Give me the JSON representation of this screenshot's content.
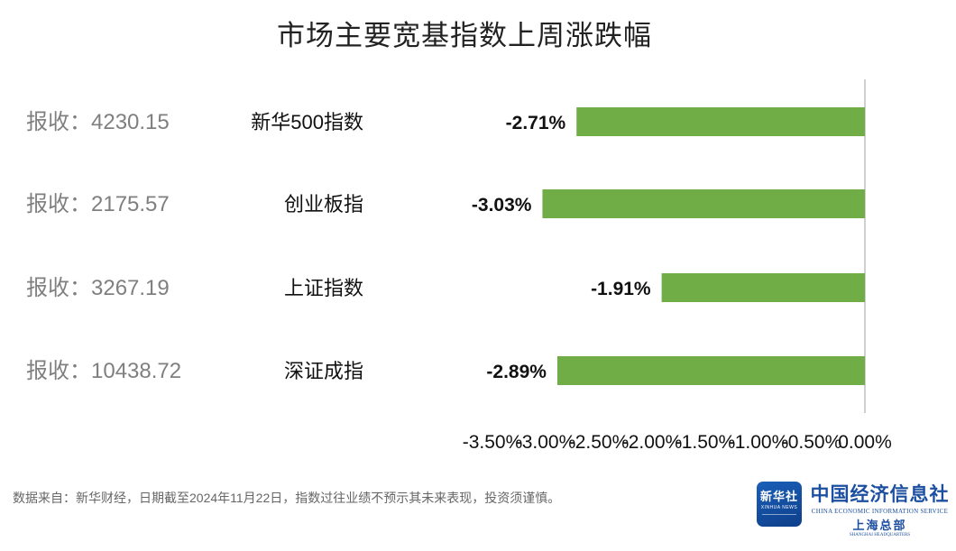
{
  "title": "市场主要宽基指数上周涨跌幅",
  "chart_data": {
    "type": "bar",
    "orientation": "horizontal",
    "categories": [
      "新华500指数",
      "创业板指",
      "上证指数",
      "深证成指"
    ],
    "values": [
      -2.71,
      -3.03,
      -1.91,
      -2.89
    ],
    "value_labels": [
      "-2.71%",
      "-3.03%",
      "-1.91%",
      "-2.89%"
    ],
    "close_labels": [
      "报收：4230.15",
      "报收：2175.57",
      "报收：3267.19",
      "报收：10438.72"
    ],
    "xlim": [
      -3.5,
      0
    ],
    "x_ticks": [
      -3.5,
      -3.0,
      -2.5,
      -2.0,
      -1.5,
      -1.0,
      -0.5,
      0.0
    ],
    "x_tick_labels": [
      "-3.50%",
      "-3.00%",
      "-2.50%",
      "-2.00%",
      "-1.50%",
      "-1.00%",
      "-0.50%",
      "0.00%"
    ],
    "bar_color": "#70ad47",
    "grid": false,
    "legend": "none"
  },
  "footer": {
    "source": "数据来自：新华财经，日期截至2024年11月22日，指数过往业绩不预示其未来表现，投资须谨慎。"
  },
  "logo": {
    "badge_text": "新华社",
    "badge_en": "XINHUA NEWS",
    "org_name": "中国经济信息社",
    "org_en": "CHINA ECONOMIC INFORMATION SERVICE",
    "org_sub": "上海总部",
    "org_sub_en": "SHANGHAI HEADQUARTERS"
  }
}
